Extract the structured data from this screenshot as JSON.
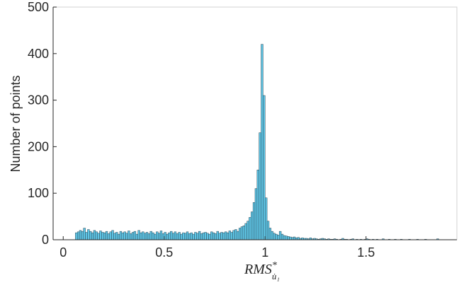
{
  "chart_data": {
    "type": "histogram",
    "xlabel": {
      "base": "RMS",
      "sup": "*",
      "sub": "u̇₁"
    },
    "ylabel": "Number of points",
    "color": "#5ec4e4",
    "edgecolor": "#2a4654",
    "xlim": [
      -0.05,
      1.95
    ],
    "ylim": [
      0,
      500
    ],
    "xticks": [
      0,
      0.5,
      1,
      1.5
    ],
    "yticks": [
      0,
      100,
      200,
      300,
      400,
      500
    ],
    "bins": [
      0.06,
      0.07,
      0.08,
      0.09,
      0.1,
      0.11,
      0.12,
      0.13,
      0.14,
      0.15,
      0.16,
      0.17,
      0.18,
      0.19,
      0.2,
      0.21,
      0.22,
      0.23,
      0.24,
      0.25,
      0.26,
      0.27,
      0.28,
      0.29,
      0.3,
      0.31,
      0.32,
      0.33,
      0.34,
      0.35,
      0.36,
      0.37,
      0.38,
      0.39,
      0.4,
      0.41,
      0.42,
      0.43,
      0.44,
      0.45,
      0.46,
      0.47,
      0.48,
      0.49,
      0.5,
      0.51,
      0.52,
      0.53,
      0.54,
      0.55,
      0.56,
      0.57,
      0.58,
      0.59,
      0.6,
      0.61,
      0.62,
      0.63,
      0.64,
      0.65,
      0.66,
      0.67,
      0.68,
      0.69,
      0.7,
      0.71,
      0.72,
      0.73,
      0.74,
      0.75,
      0.76,
      0.77,
      0.78,
      0.79,
      0.8,
      0.81,
      0.82,
      0.83,
      0.84,
      0.85,
      0.86,
      0.87,
      0.88,
      0.89,
      0.9,
      0.91,
      0.92,
      0.93,
      0.94,
      0.95,
      0.96,
      0.97,
      0.98,
      0.99,
      1.0,
      1.01,
      1.02,
      1.03,
      1.04,
      1.05,
      1.06,
      1.07,
      1.08,
      1.09,
      1.1,
      1.11,
      1.12,
      1.13,
      1.14,
      1.15,
      1.16,
      1.17,
      1.18,
      1.19,
      1.2,
      1.21,
      1.22,
      1.23,
      1.24,
      1.25,
      1.26,
      1.27,
      1.28,
      1.29,
      1.3,
      1.31,
      1.32,
      1.33,
      1.34,
      1.35,
      1.36,
      1.37,
      1.38,
      1.39,
      1.4,
      1.41,
      1.42,
      1.43,
      1.44,
      1.45,
      1.46,
      1.47,
      1.48,
      1.49,
      1.5,
      1.51,
      1.52,
      1.53,
      1.54,
      1.55,
      1.56,
      1.57,
      1.58,
      1.59,
      1.6,
      1.61,
      1.62,
      1.63,
      1.64,
      1.65,
      1.66,
      1.67,
      1.68,
      1.69,
      1.7,
      1.71,
      1.72,
      1.73,
      1.74,
      1.75,
      1.76,
      1.77,
      1.78,
      1.79,
      1.8,
      1.81,
      1.82,
      1.83,
      1.84,
      1.85,
      1.86,
      1.87,
      1.88
    ],
    "counts": [
      15,
      17,
      20,
      18,
      25,
      16,
      22,
      18,
      15,
      20,
      17,
      14,
      19,
      16,
      15,
      18,
      13,
      17,
      20,
      14,
      16,
      12,
      18,
      15,
      17,
      14,
      19,
      13,
      16,
      18,
      12,
      20,
      15,
      17,
      14,
      16,
      13,
      18,
      15,
      12,
      17,
      14,
      19,
      13,
      16,
      12,
      15,
      18,
      14,
      17,
      13,
      16,
      12,
      15,
      14,
      17,
      13,
      15,
      12,
      16,
      14,
      18,
      13,
      15,
      16,
      14,
      12,
      17,
      15,
      13,
      18,
      14,
      16,
      15,
      17,
      15,
      19,
      16,
      20,
      22,
      18,
      25,
      28,
      30,
      35,
      40,
      48,
      60,
      80,
      110,
      150,
      230,
      420,
      310,
      90,
      40,
      25,
      18,
      14,
      12,
      10,
      18,
      12,
      9,
      8,
      7,
      6,
      5,
      6,
      4,
      5,
      3,
      4,
      3,
      3,
      2,
      4,
      2,
      3,
      2,
      1,
      2,
      3,
      2,
      1,
      2,
      1,
      1,
      2,
      1,
      0,
      1,
      3,
      1,
      1,
      0,
      1,
      2,
      0,
      1,
      0,
      1,
      0,
      1,
      2,
      1,
      0,
      1,
      0,
      1,
      0,
      0,
      2,
      0,
      0,
      1,
      0,
      0,
      1,
      0,
      0,
      1,
      0,
      0,
      0,
      1,
      0,
      0,
      0,
      1,
      0,
      0,
      0,
      1,
      0,
      0,
      0,
      0,
      0,
      2,
      0,
      0
    ]
  }
}
